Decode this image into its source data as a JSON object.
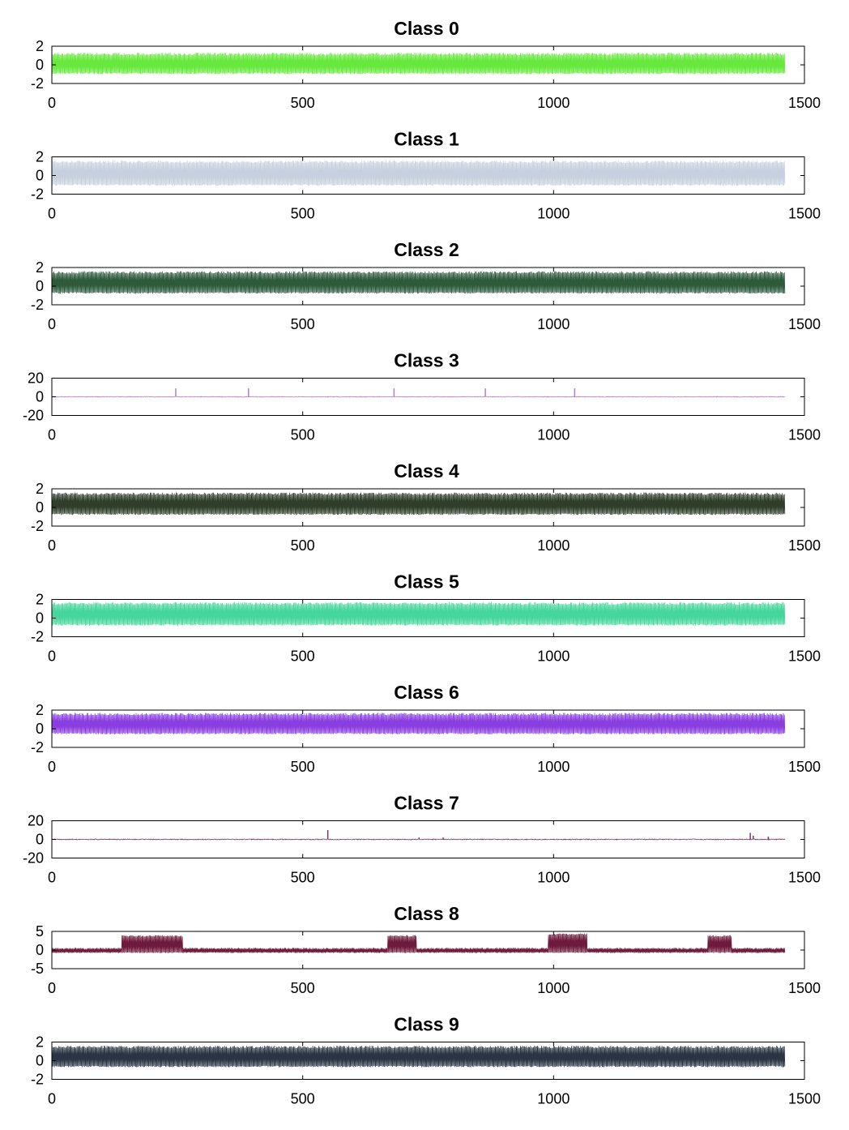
{
  "chart_data": [
    {
      "type": "line",
      "title": "Class 0",
      "color": "#66e83c",
      "ylim": [
        -2,
        2
      ],
      "yticks": [
        2,
        0,
        -2
      ],
      "xlim": [
        0,
        1500
      ],
      "xticks": [
        0,
        500,
        1000,
        1500
      ],
      "n_points": 1462,
      "pattern": "oscillating",
      "amplitude": [
        -1,
        1.3
      ]
    },
    {
      "type": "line",
      "title": "Class 1",
      "color": "#c7d0de",
      "ylim": [
        -2,
        2
      ],
      "yticks": [
        2,
        0,
        -2
      ],
      "xlim": [
        0,
        1500
      ],
      "xticks": [
        0,
        500,
        1000,
        1500
      ],
      "n_points": 1462,
      "pattern": "oscillating",
      "amplitude": [
        -1.1,
        1.6
      ]
    },
    {
      "type": "line",
      "title": "Class 2",
      "color": "#2e5a3c",
      "ylim": [
        -2,
        2
      ],
      "yticks": [
        2,
        0,
        -2
      ],
      "xlim": [
        0,
        1500
      ],
      "xticks": [
        0,
        500,
        1000,
        1500
      ],
      "n_points": 1462,
      "pattern": "oscillating",
      "amplitude": [
        -0.8,
        1.6
      ]
    },
    {
      "type": "line",
      "title": "Class 3",
      "color": "#b57ad6",
      "ylim": [
        -20,
        20
      ],
      "yticks": [
        20,
        0,
        -20
      ],
      "xlim": [
        0,
        1500
      ],
      "xticks": [
        0,
        500,
        1000,
        1500
      ],
      "n_points": 1462,
      "pattern": "flat-with-spikes",
      "amplitude": [
        -0.5,
        0.8
      ],
      "spikes": [
        {
          "x": 247,
          "y": 9
        },
        {
          "x": 392,
          "y": 9
        },
        {
          "x": 682,
          "y": 9
        },
        {
          "x": 864,
          "y": 9
        },
        {
          "x": 1042,
          "y": 9
        }
      ]
    },
    {
      "type": "line",
      "title": "Class 4",
      "color": "#2f3d2a",
      "ylim": [
        -2,
        2
      ],
      "yticks": [
        2,
        0,
        -2
      ],
      "xlim": [
        0,
        1500
      ],
      "xticks": [
        0,
        500,
        1000,
        1500
      ],
      "n_points": 1462,
      "pattern": "oscillating",
      "amplitude": [
        -0.8,
        1.6
      ]
    },
    {
      "type": "line",
      "title": "Class 5",
      "color": "#44d69a",
      "ylim": [
        -2,
        2
      ],
      "yticks": [
        2,
        0,
        -2
      ],
      "xlim": [
        0,
        1500
      ],
      "xticks": [
        0,
        500,
        1000,
        1500
      ],
      "n_points": 1462,
      "pattern": "oscillating",
      "amplitude": [
        -0.8,
        1.7
      ]
    },
    {
      "type": "line",
      "title": "Class 6",
      "color": "#8a3ee0",
      "ylim": [
        -2,
        2
      ],
      "yticks": [
        2,
        0,
        -2
      ],
      "xlim": [
        0,
        1500
      ],
      "xticks": [
        0,
        500,
        1000,
        1500
      ],
      "n_points": 1462,
      "pattern": "oscillating",
      "amplitude": [
        -0.6,
        1.7
      ]
    },
    {
      "type": "line",
      "title": "Class 7",
      "color": "#7a3668",
      "ylim": [
        -20,
        20
      ],
      "yticks": [
        20,
        0,
        -20
      ],
      "xlim": [
        0,
        1500
      ],
      "xticks": [
        0,
        500,
        1000,
        1500
      ],
      "n_points": 1462,
      "pattern": "flat-with-spikes",
      "amplitude": [
        -0.8,
        0.8
      ],
      "spikes": [
        {
          "x": 550,
          "y": 10
        },
        {
          "x": 732,
          "y": 2
        },
        {
          "x": 780,
          "y": 2
        },
        {
          "x": 1392,
          "y": 7
        },
        {
          "x": 1398,
          "y": 4
        },
        {
          "x": 1428,
          "y": 3
        }
      ]
    },
    {
      "type": "line",
      "title": "Class 8",
      "color": "#6e1a3c",
      "ylim": [
        -5,
        5
      ],
      "yticks": [
        5,
        0,
        -5
      ],
      "xlim": [
        0,
        1500
      ],
      "xticks": [
        0,
        500,
        1000,
        1500
      ],
      "n_points": 1462,
      "pattern": "bursts",
      "amplitude": [
        -0.8,
        0.6
      ],
      "bursts": [
        {
          "start": 140,
          "end": 260,
          "high": 4
        },
        {
          "start": 670,
          "end": 726,
          "high": 4
        },
        {
          "start": 990,
          "end": 1066,
          "high": 4.5
        },
        {
          "start": 1308,
          "end": 1355,
          "high": 4
        }
      ]
    },
    {
      "type": "line",
      "title": "Class 9",
      "color": "#2a3444",
      "ylim": [
        -2,
        2
      ],
      "yticks": [
        2,
        0,
        -2
      ],
      "xlim": [
        0,
        1500
      ],
      "xticks": [
        0,
        500,
        1000,
        1500
      ],
      "n_points": 1462,
      "pattern": "oscillating",
      "amplitude": [
        -0.7,
        1.6
      ]
    }
  ]
}
